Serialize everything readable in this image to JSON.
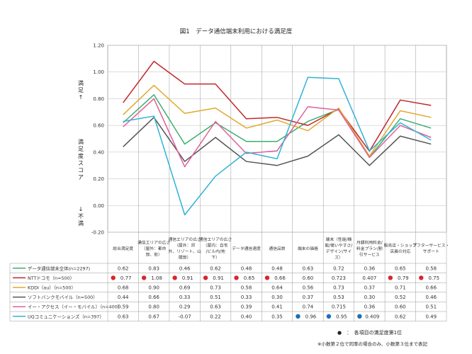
{
  "chart_data": {
    "type": "line",
    "title": "図1　データ通信端末利用における満足度",
    "ylabel_top": "満足↑",
    "ylabel_mid": "満足度スコア",
    "ylabel_bottom": "↓不満",
    "ylim": [
      -0.2,
      1.2
    ],
    "yticks": [
      "-0.20",
      "0.00",
      "0.20",
      "0.40",
      "0.60",
      "0.80",
      "1.00",
      "1.20"
    ],
    "ytick_values": [
      -0.2,
      0.0,
      0.2,
      0.4,
      0.6,
      0.8,
      1.0,
      1.2
    ],
    "grid": true,
    "categories": [
      [
        "総合満足度"
      ],
      [
        "通信エリアの広さ",
        "（屋外：都市",
        "部、街）"
      ],
      [
        "通信エリアの広さ",
        "（屋外：郊",
        "外、リゾート、山",
        "間部）"
      ],
      [
        "通信エリアの広さ",
        "（屋内：自宅",
        "/ビル内/地",
        "下）"
      ],
      [
        "データ通信速度"
      ],
      [
        "通信品質"
      ],
      [
        "端末の価格"
      ],
      [
        "端末（性能/機",
        "能/使いやすさ/",
        "デザイン/サイ",
        "ズ）"
      ],
      [
        "月額利用料金/",
        "料金プラン/割",
        "引サービス"
      ],
      [
        "販売店・ショップ",
        "店員の対応"
      ],
      [
        "アフターサービス・",
        "サポート"
      ]
    ],
    "series": [
      {
        "name": "データ通信端末全体(n=2297)",
        "color": "#3cae6f",
        "values": [
          0.62,
          0.83,
          0.46,
          0.62,
          0.48,
          0.48,
          0.63,
          0.72,
          0.36,
          0.65,
          0.58
        ],
        "labels": [
          "0.62",
          "0.83",
          "0.46",
          "0.62",
          "0.48",
          "0.48",
          "0.63",
          "0.72",
          "0.36",
          "0.65",
          "0.58"
        ],
        "marks": [
          "",
          "",
          "",
          "",
          "",
          "",
          "",
          "",
          "",
          "",
          ""
        ]
      },
      {
        "name": "NTTドコモ（n=500）",
        "color": "#c0282d",
        "values": [
          0.77,
          1.08,
          0.91,
          0.91,
          0.65,
          0.66,
          0.6,
          0.723,
          0.407,
          0.79,
          0.75
        ],
        "labels": [
          "0.77",
          "1.08",
          "0.91",
          "0.91",
          "0.65",
          "0.66",
          "0.60",
          "0.723",
          "0.407",
          "0.79",
          "0.75"
        ],
        "marks": [
          "red",
          "red",
          "red",
          "red",
          "red",
          "red",
          "",
          "",
          "",
          "red",
          "red"
        ]
      },
      {
        "name": "KDDI（au）（n=500）",
        "color": "#e0a92e",
        "values": [
          0.68,
          0.9,
          0.69,
          0.73,
          0.58,
          0.64,
          0.56,
          0.73,
          0.37,
          0.71,
          0.66
        ],
        "labels": [
          "0.68",
          "0.90",
          "0.69",
          "0.73",
          "0.58",
          "0.64",
          "0.56",
          "0.73",
          "0.37",
          "0.71",
          "0.66"
        ],
        "marks": [
          "",
          "",
          "",
          "",
          "",
          "",
          "",
          "",
          "",
          "",
          ""
        ]
      },
      {
        "name": "ソフトバンクモバイル（n=500）",
        "color": "#555555",
        "values": [
          0.44,
          0.66,
          0.33,
          0.51,
          0.33,
          0.3,
          0.37,
          0.53,
          0.3,
          0.52,
          0.46
        ],
        "labels": [
          "0.44",
          "0.66",
          "0.33",
          "0.51",
          "0.33",
          "0.30",
          "0.37",
          "0.53",
          "0.30",
          "0.52",
          "0.46"
        ],
        "marks": [
          "",
          "",
          "",
          "",
          "",
          "",
          "",
          "",
          "",
          "",
          ""
        ]
      },
      {
        "name": "イー・アクセス（イー・モバイル）（n=400）",
        "color": "#e0609a",
        "values": [
          0.59,
          0.8,
          0.29,
          0.63,
          0.39,
          0.41,
          0.74,
          0.715,
          0.36,
          0.6,
          0.51
        ],
        "labels": [
          "0.59",
          "0.80",
          "0.29",
          "0.63",
          "0.39",
          "0.41",
          "0.74",
          "0.715",
          "0.36",
          "0.60",
          "0.51"
        ],
        "marks": [
          "",
          "",
          "",
          "",
          "",
          "",
          "",
          "",
          "",
          "",
          ""
        ]
      },
      {
        "name": "UQコミュニケーションズ（n=397）",
        "color": "#2fb3d6",
        "values": [
          0.63,
          0.67,
          -0.07,
          0.22,
          0.4,
          0.35,
          0.96,
          0.95,
          0.409,
          0.62,
          0.49
        ],
        "labels": [
          "0.63",
          "0.67",
          "-0.07",
          "0.22",
          "0.40",
          "0.35",
          "0.96",
          "0.95",
          "0.409",
          "0.62",
          "0.49"
        ],
        "marks": [
          "",
          "",
          "",
          "",
          "",
          "",
          "blue",
          "blue",
          "blue",
          "",
          ""
        ]
      }
    ],
    "mark_colors": {
      "red": "#d7262b",
      "blue": "#1b6fb8"
    },
    "notes": [
      "●　：　各項目の満足度第1位",
      "※小数第２位で同率の場合のみ、小数第３位まで表記"
    ]
  }
}
